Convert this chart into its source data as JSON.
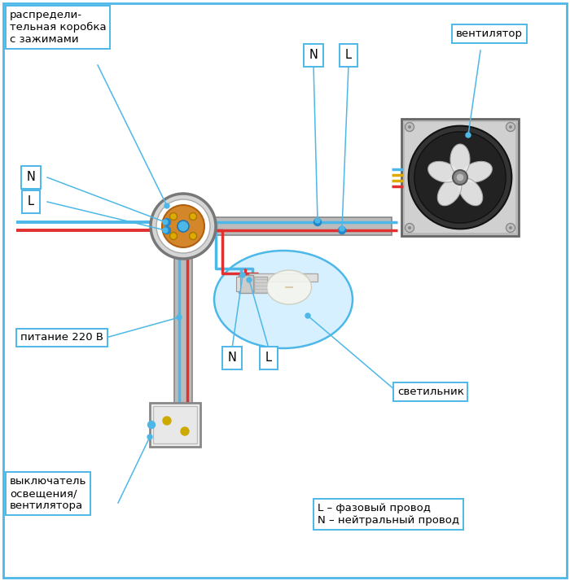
{
  "bg_color": "#ffffff",
  "wire_blue": "#4db8e8",
  "wire_red": "#e03030",
  "wire_gray": "#888888",
  "junction_blue": "#2288cc",
  "labels": {
    "distrib_box": "распредели-\nтельная коробка\nс зажимами",
    "N_left": "N",
    "L_left": "L",
    "power": "питание 220 В",
    "switch": "выключатель\nосвещения/\nвентилятора",
    "fan": "вентилятор",
    "lamp": "светильник",
    "N_top": "N",
    "L_top": "L",
    "N_bot": "N",
    "L_bot": "L",
    "legend": "L – фазовый провод\nN – нейтральный провод"
  },
  "fig_width": 7.0,
  "fig_height": 7.14,
  "dpi": 100
}
